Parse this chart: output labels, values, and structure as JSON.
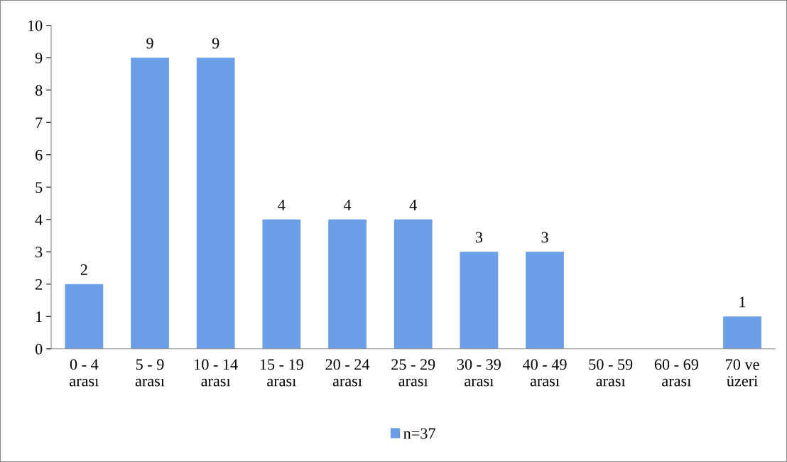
{
  "chart_data": {
    "type": "bar",
    "categories": [
      "0 - 4\narası",
      "5 - 9\narası",
      "10 - 14\narası",
      "15 - 19\narası",
      "20 - 24\narası",
      "25 - 29\narası",
      "30 - 39\narası",
      "40 - 49\narası",
      "50 - 59\narası",
      "60 - 69\narası",
      "70 ve\nüzeri"
    ],
    "series": [
      {
        "name": "n=37",
        "color": "#6a9ee6",
        "values": [
          2,
          9,
          9,
          4,
          4,
          4,
          3,
          3,
          0,
          0,
          1
        ],
        "value_labels": [
          "2",
          "9",
          "9",
          "4",
          "4",
          "4",
          "3",
          "3",
          null,
          null,
          "1"
        ]
      }
    ],
    "ylim": [
      0,
      10
    ],
    "yticks": [
      0,
      1,
      2,
      3,
      4,
      5,
      6,
      7,
      8,
      9,
      10
    ],
    "grid": false,
    "legend": "bottom"
  }
}
